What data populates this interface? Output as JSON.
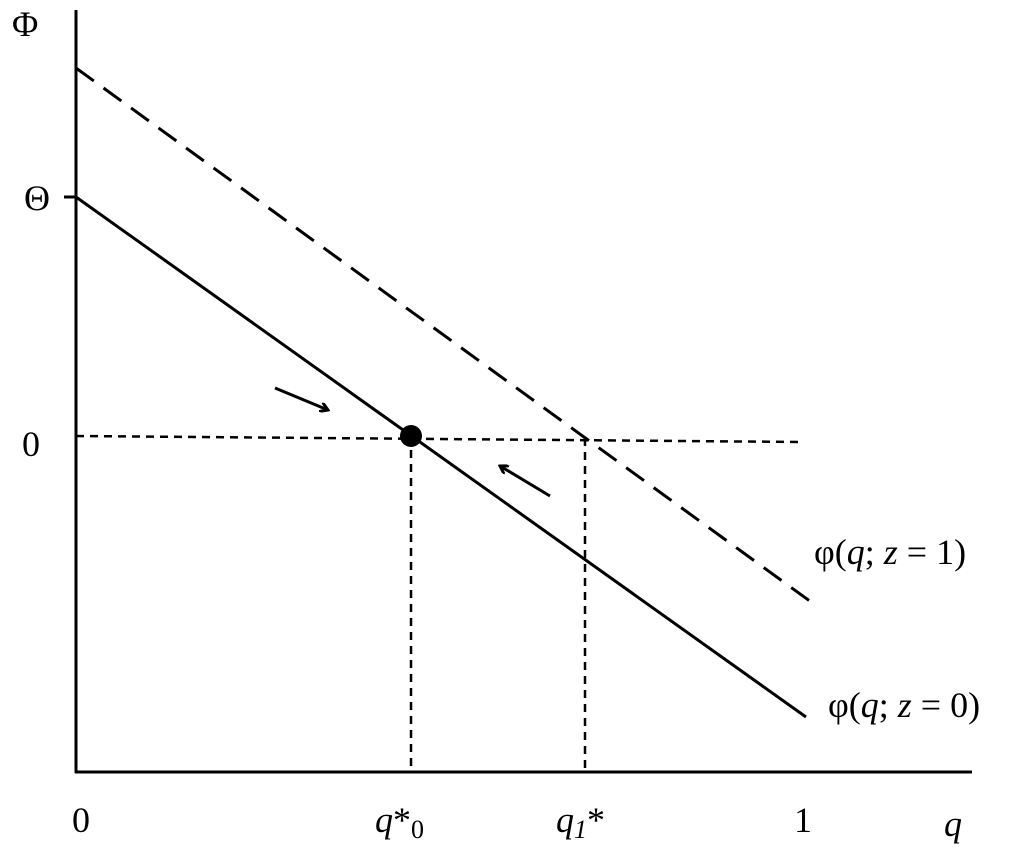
{
  "y_axis": {
    "title": "Φ",
    "labels": [
      "Θ",
      "0"
    ]
  },
  "x_axis": {
    "title": "q",
    "labels": [
      [
        "0"
      ],
      [
        "q",
        "*",
        "0"
      ],
      [
        "q",
        "1",
        "*"
      ],
      [
        "1"
      ]
    ]
  },
  "curves": [
    {
      "label": [
        "φ(",
        "q",
        "; ",
        "z",
        " = 1)"
      ]
    },
    {
      "label": [
        "φ(",
        "q",
        "; ",
        "z",
        " = 0)"
      ]
    }
  ]
}
